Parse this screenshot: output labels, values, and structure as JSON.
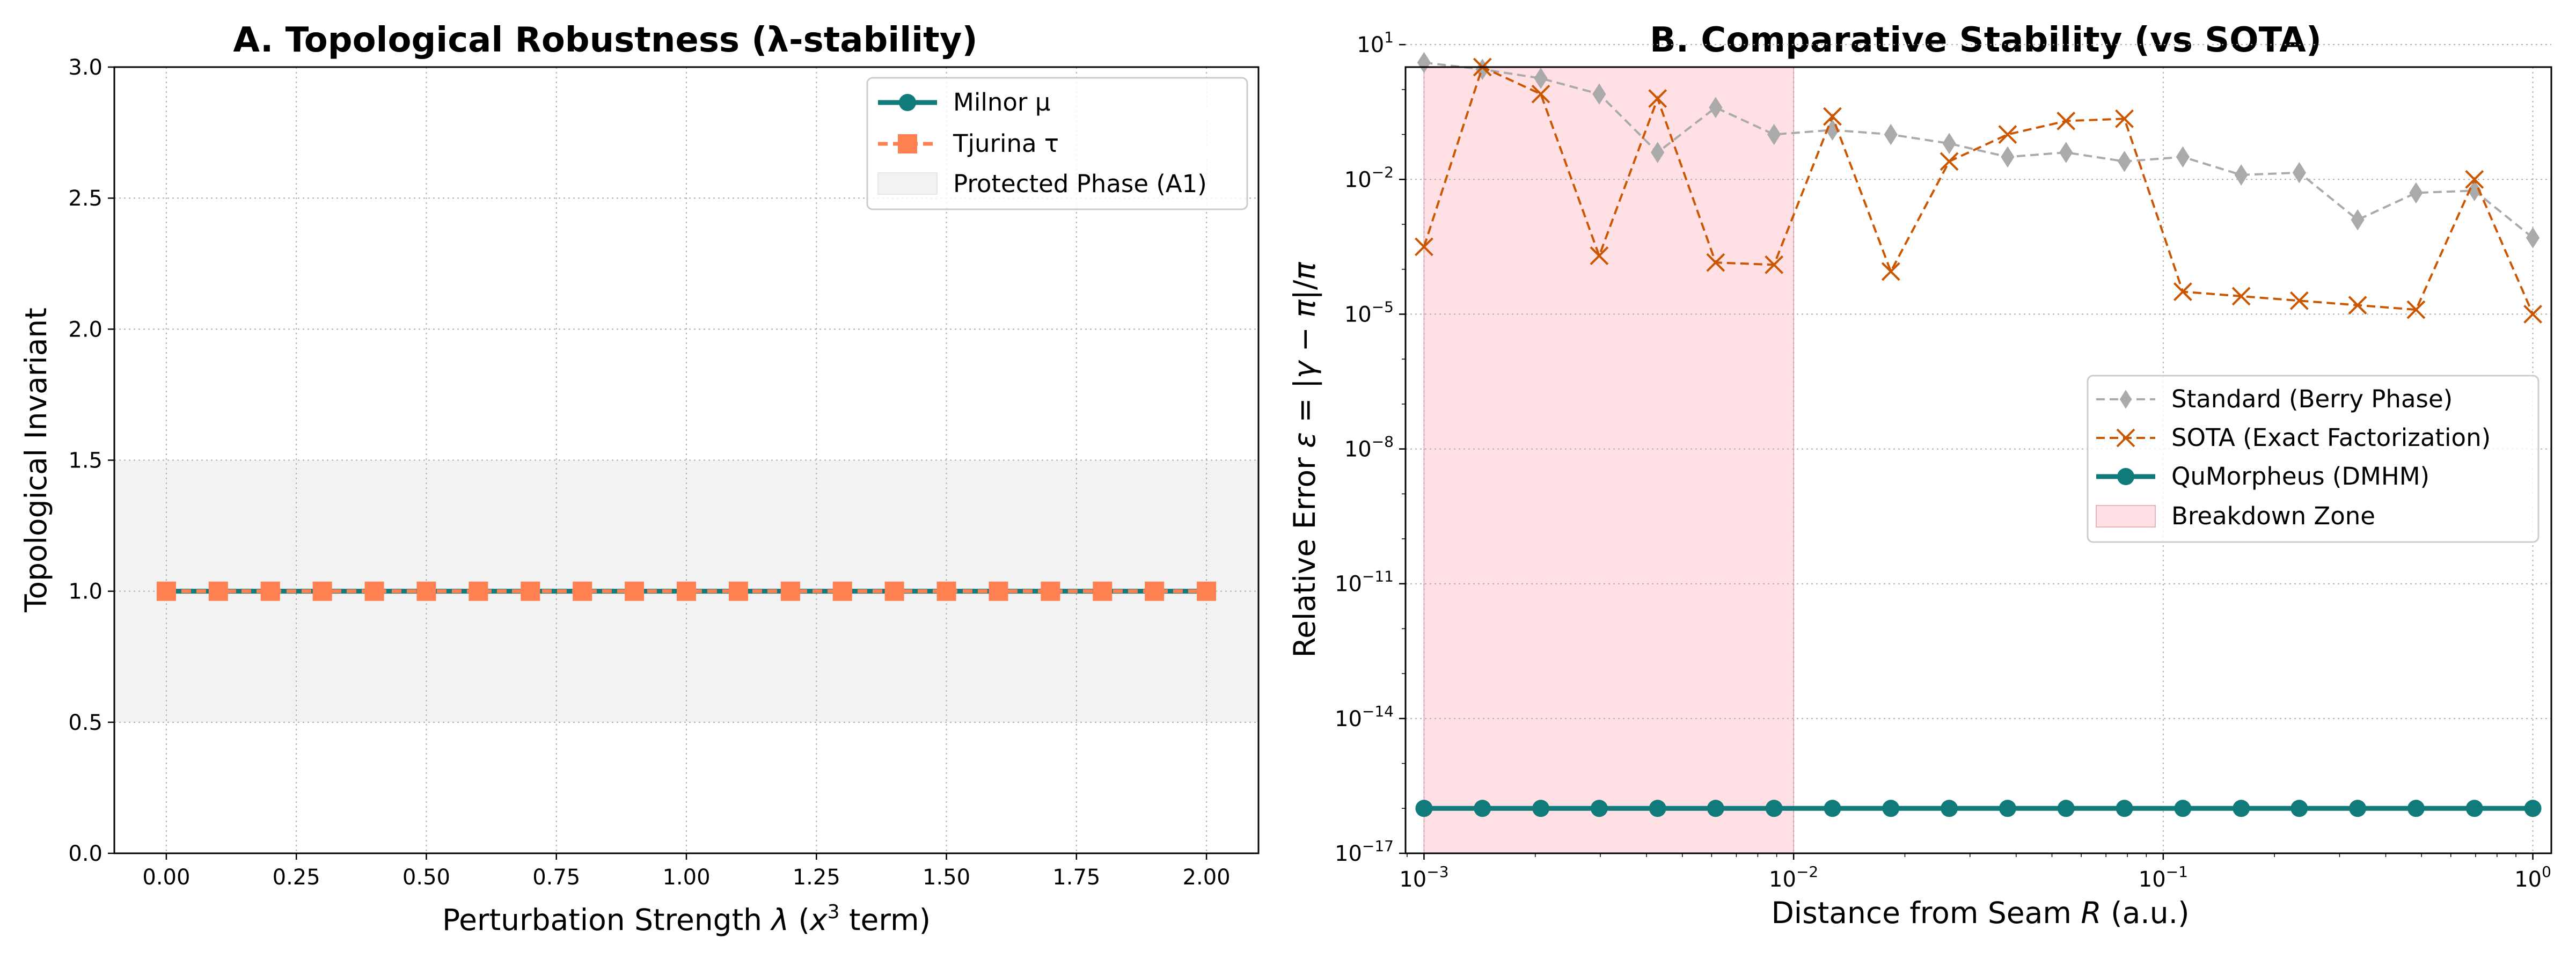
{
  "figure": {
    "background": "#ffffff"
  },
  "chart_data": [
    {
      "type": "line",
      "title": "A. Topological Robustness (λ-stability)",
      "xlabel": "Perturbation Strength λ (x³ term)",
      "ylabel": "Topological Invariant",
      "xlim": [
        -0.1,
        2.1
      ],
      "ylim": [
        0.0,
        3.0
      ],
      "xticks": [
        0.0,
        0.25,
        0.5,
        0.75,
        1.0,
        1.25,
        1.5,
        1.75,
        2.0
      ],
      "xtick_labels": [
        "0.00",
        "0.25",
        "0.50",
        "0.75",
        "1.00",
        "1.25",
        "1.50",
        "1.75",
        "2.00"
      ],
      "yticks": [
        0.0,
        0.5,
        1.0,
        1.5,
        2.0,
        2.5,
        3.0
      ],
      "ytick_labels": [
        "0.0",
        "0.5",
        "1.0",
        "1.5",
        "2.0",
        "2.5",
        "3.0"
      ],
      "grid": true,
      "legend_position": "upper right",
      "band": {
        "name": "Protected Phase (A1)",
        "y0": 0.5,
        "y1": 1.5,
        "color": "#f2f2f2"
      },
      "x": [
        0.0,
        0.1,
        0.2,
        0.3,
        0.4,
        0.5,
        0.6,
        0.7,
        0.8,
        0.9,
        1.0,
        1.1,
        1.2,
        1.3,
        1.4,
        1.5,
        1.6,
        1.7,
        1.8,
        1.9,
        2.0
      ],
      "series": [
        {
          "name": "Milnor μ",
          "color": "#117a7a",
          "marker": "circle",
          "line": "solid",
          "values": [
            1,
            1,
            1,
            1,
            1,
            1,
            1,
            1,
            1,
            1,
            1,
            1,
            1,
            1,
            1,
            1,
            1,
            1,
            1,
            1,
            1
          ]
        },
        {
          "name": "Tjurina τ",
          "color": "#ff8050",
          "marker": "square",
          "line": "dashed",
          "values": [
            1,
            1,
            1,
            1,
            1,
            1,
            1,
            1,
            1,
            1,
            1,
            1,
            1,
            1,
            1,
            1,
            1,
            1,
            1,
            1,
            1
          ]
        }
      ]
    },
    {
      "type": "line",
      "title": "B. Comparative Stability (vs SOTA)",
      "xlabel": "Distance from Seam R (a.u.)",
      "ylabel": "Relative Error ε = |γ − π|/π",
      "xscale": "log",
      "yscale": "log",
      "xlim_log10": [
        -3.05,
        0.05
      ],
      "ylim_log10": [
        -17,
        0.5
      ],
      "xticks_log10": [
        -3,
        -2,
        -1,
        0
      ],
      "xtick_labels": [
        {
          "base": "10",
          "exp": "−3"
        },
        {
          "base": "10",
          "exp": "−2"
        },
        {
          "base": "10",
          "exp": "−1"
        },
        {
          "base": "10",
          "exp": "0"
        }
      ],
      "yticks_log10": [
        1,
        -2,
        -5,
        -8,
        -11,
        -14,
        -17
      ],
      "ytick_labels": [
        {
          "base": "10",
          "exp": "1"
        },
        {
          "base": "10",
          "exp": "−2"
        },
        {
          "base": "10",
          "exp": "−5"
        },
        {
          "base": "10",
          "exp": "−8"
        },
        {
          "base": "10",
          "exp": "−11"
        },
        {
          "base": "10",
          "exp": "−14"
        },
        {
          "base": "10",
          "exp": "−17"
        }
      ],
      "grid": true,
      "legend_position": "center right",
      "band": {
        "name": "Breakdown Zone",
        "x0_log10": -3,
        "x1_log10": -2,
        "color": "#ffe0e4",
        "edge": "#e8b4ba"
      },
      "x_log10": [
        -3.0,
        -2.842,
        -2.684,
        -2.526,
        -2.368,
        -2.211,
        -2.053,
        -1.895,
        -1.737,
        -1.579,
        -1.421,
        -1.263,
        -1.105,
        -0.947,
        -0.789,
        -0.632,
        -0.474,
        -0.316,
        -0.158,
        0.0
      ],
      "series": [
        {
          "name": "Standard (Berry Phase)",
          "color": "#aaaaaa",
          "marker": "diamond",
          "line": "dashed",
          "values_log10": [
            0.6,
            0.45,
            0.25,
            -0.1,
            -1.4,
            -0.4,
            -1.0,
            -0.9,
            -1.0,
            -1.2,
            -1.5,
            -1.4,
            -1.6,
            -1.5,
            -1.9,
            -1.85,
            -2.9,
            -2.3,
            -2.25,
            -3.3
          ]
        },
        {
          "name": "SOTA (Exact Factorization)",
          "color": "#cc5500",
          "marker": "x",
          "line": "dashed",
          "values_log10": [
            -3.5,
            0.5,
            -0.1,
            -3.7,
            -0.2,
            -3.85,
            -3.9,
            -0.6,
            -4.05,
            -1.6,
            -1.0,
            -0.7,
            -0.65,
            -4.5,
            -4.6,
            -4.7,
            -4.8,
            -4.9,
            -2.0,
            -5.0
          ]
        },
        {
          "name": "QuMorpheus (DMHM)",
          "color": "#117a7a",
          "marker": "circle",
          "line": "solid",
          "values_log10": [
            -16,
            -16,
            -16,
            -16,
            -16,
            -16,
            -16,
            -16,
            -16,
            -16,
            -16,
            -16,
            -16,
            -16,
            -16,
            -16,
            -16,
            -16,
            -16,
            -16
          ]
        }
      ]
    }
  ]
}
